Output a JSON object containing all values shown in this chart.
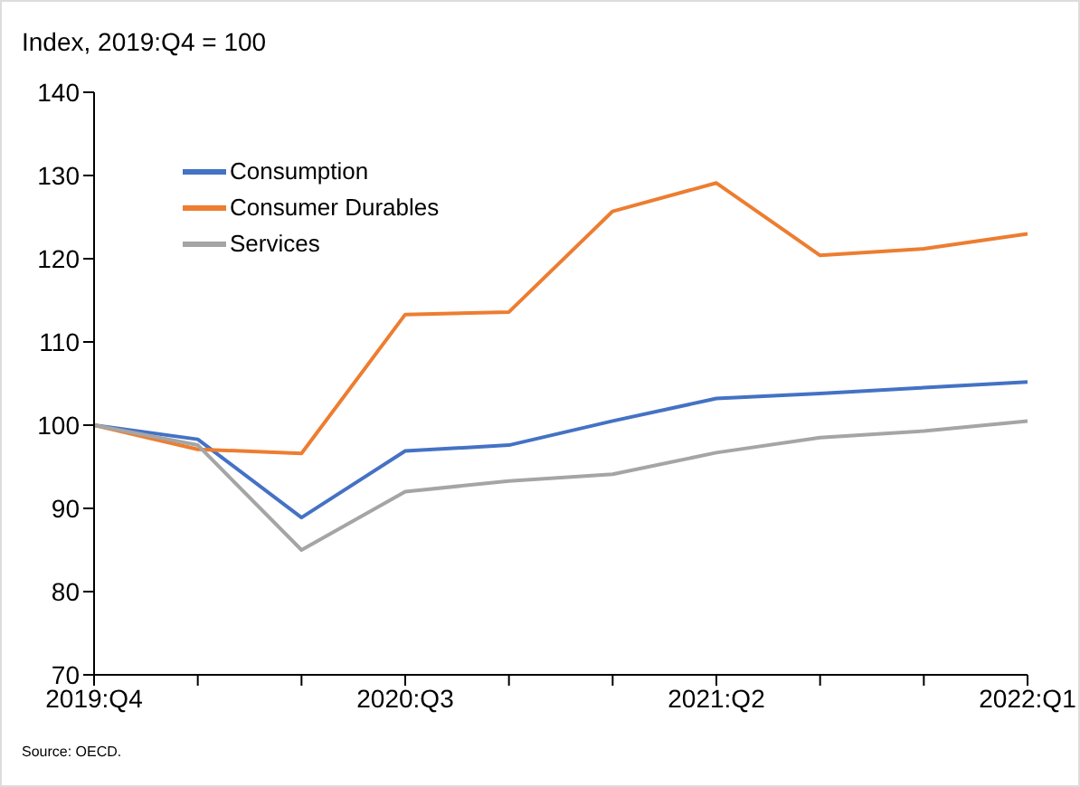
{
  "chart_data": {
    "type": "line",
    "ylabel": "Index, 2019:Q4 = 100",
    "categories": [
      "2019:Q4",
      null,
      null,
      "2020:Q3",
      null,
      null,
      "2021:Q2",
      null,
      null,
      "2022:Q1"
    ],
    "series": [
      {
        "name": "Consumption",
        "color": "#4472c4",
        "values": [
          100,
          98.3,
          88.9,
          96.9,
          97.6,
          100.5,
          103.2,
          103.8,
          104.5,
          105.2
        ]
      },
      {
        "name": "Consumer Durables",
        "color": "#ed7d31",
        "values": [
          100,
          97.1,
          96.6,
          113.3,
          113.6,
          125.7,
          129.1,
          120.4,
          121.2,
          123.0
        ]
      },
      {
        "name": "Services",
        "color": "#a5a5a5",
        "values": [
          100,
          97.6,
          85.0,
          92.0,
          93.3,
          94.1,
          96.7,
          98.5,
          99.3,
          100.5
        ]
      }
    ],
    "ylim": [
      70,
      140
    ],
    "yticks": [
      70,
      80,
      90,
      100,
      110,
      120,
      130,
      140
    ],
    "grid": false,
    "legend": "top left",
    "marker": "none",
    "line_style": "solid",
    "annotations": [
      "Source: OECD."
    ]
  }
}
